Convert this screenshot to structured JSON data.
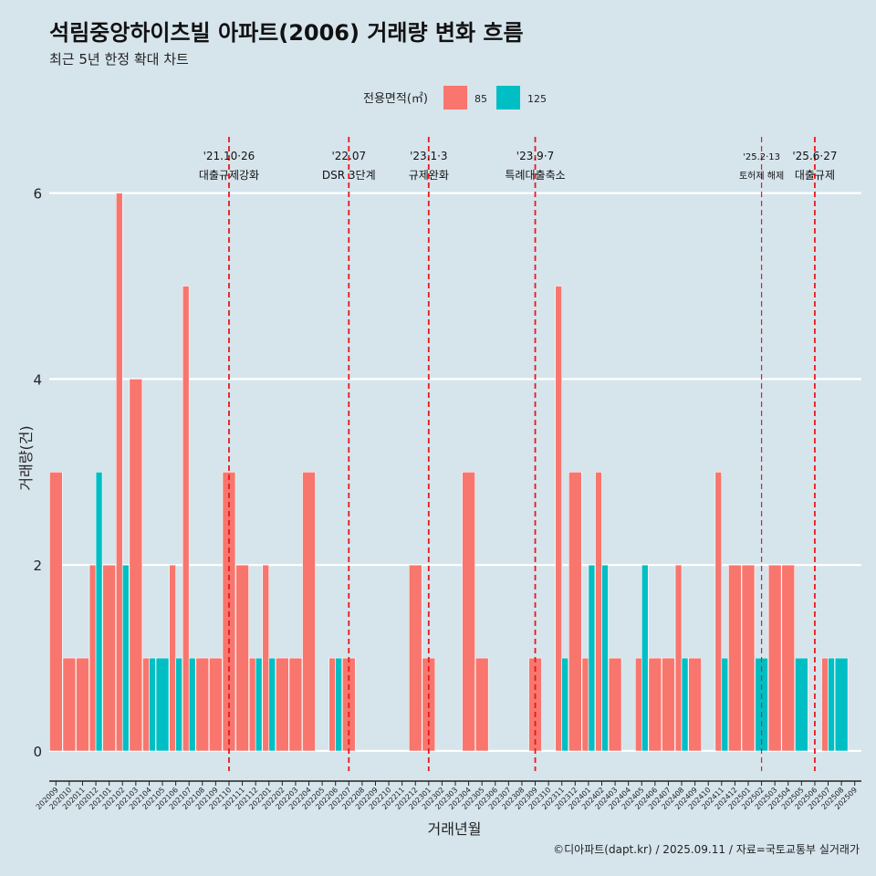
{
  "chart_data": {
    "type": "bar",
    "title": "석림중앙하이츠빌 아파트(2006) 거래량 변화 흐름",
    "subtitle": "최근 5년 한정 확대 차트",
    "xlabel": "거래년월",
    "ylabel": "거래량(건)",
    "ylim": [
      0,
      6.2
    ],
    "yticks": [
      0,
      2,
      4,
      6
    ],
    "legend": {
      "title": "전용면적(㎡)",
      "position": "top-center"
    },
    "categories": [
      "202009",
      "202010",
      "202011",
      "202012",
      "202101",
      "202102",
      "202103",
      "202104",
      "202105",
      "202106",
      "202107",
      "202108",
      "202109",
      "202110",
      "202111",
      "202112",
      "202201",
      "202202",
      "202203",
      "202204",
      "202205",
      "202206",
      "202207",
      "202208",
      "202209",
      "202210",
      "202211",
      "202212",
      "202301",
      "202302",
      "202303",
      "202304",
      "202305",
      "202306",
      "202307",
      "202308",
      "202309",
      "202310",
      "202311",
      "202312",
      "202401",
      "202402",
      "202403",
      "202404",
      "202405",
      "202406",
      "202407",
      "202408",
      "202409",
      "202410",
      "202411",
      "202412",
      "202501",
      "202502",
      "202503",
      "202504",
      "202505",
      "202506",
      "202507",
      "202508",
      "202509"
    ],
    "series": [
      {
        "name": "85",
        "color": "#f8766d",
        "values": [
          3,
          1,
          1,
          2,
          2,
          6,
          4,
          1,
          0,
          2,
          5,
          1,
          1,
          3,
          2,
          1,
          2,
          1,
          1,
          3,
          0,
          1,
          1,
          0,
          0,
          0,
          0,
          2,
          1,
          0,
          0,
          3,
          1,
          0,
          0,
          0,
          1,
          0,
          5,
          3,
          1,
          3,
          1,
          0,
          1,
          1,
          1,
          2,
          1,
          0,
          3,
          2,
          2,
          0,
          2,
          2,
          0,
          0,
          1,
          0,
          0
        ]
      },
      {
        "name": "125",
        "color": "#00bfc4",
        "values": [
          0,
          0,
          0,
          3,
          0,
          2,
          0,
          1,
          1,
          1,
          1,
          0,
          0,
          0,
          0,
          1,
          1,
          0,
          0,
          0,
          0,
          1,
          0,
          0,
          0,
          0,
          0,
          0,
          0,
          0,
          0,
          0,
          0,
          0,
          0,
          0,
          0,
          0,
          1,
          0,
          2,
          2,
          0,
          0,
          2,
          0,
          0,
          1,
          0,
          0,
          1,
          0,
          0,
          1,
          0,
          0,
          1,
          0,
          1,
          1,
          0
        ]
      }
    ],
    "events": [
      {
        "date": "'21.10·26",
        "label": "대출규제강화",
        "at": "202110",
        "small": false
      },
      {
        "date": "'22.07",
        "label": "DSR 3단계",
        "at": "202207",
        "small": false
      },
      {
        "date": "'23.1·3",
        "label": "규제완화",
        "at": "202301",
        "small": false
      },
      {
        "date": "'23.9·7",
        "label": "특례대출축소",
        "at": "202309",
        "small": false
      },
      {
        "date": "'25.2·13",
        "label": "토허제 해제",
        "at": "202502",
        "small": true
      },
      {
        "date": "'25.6·27",
        "label": "대출규제",
        "at": "202506",
        "small": false
      }
    ],
    "event_color": "#e8191b",
    "caption": "©디아파트(dapt.kr) / 2025.09.11 / 자료=국토교통부 실거래가"
  }
}
